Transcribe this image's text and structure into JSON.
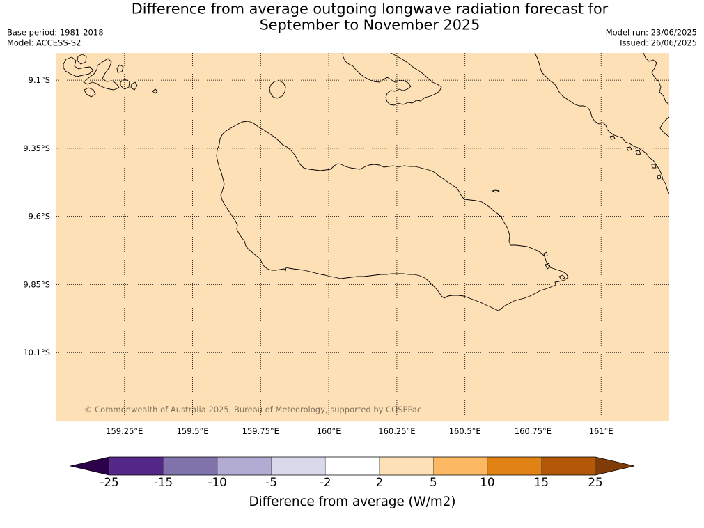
{
  "title": {
    "line1": "Difference from average outgoing longwave radiation forecast for",
    "line2": "September to November 2025"
  },
  "info_left": {
    "base_period": "Base period: 1981-2018",
    "model": "Model: ACCESS-S2"
  },
  "info_right": {
    "model_run": "Model run: 23/06/2025",
    "issued": "Issued: 26/06/2025"
  },
  "map": {
    "fill_color": "#fee0b6",
    "fill_bin": [
      2,
      5
    ],
    "lon_range": [
      159.0,
      161.25
    ],
    "lat_range": [
      -10.35,
      -9.0
    ],
    "gridlines": true,
    "lon_ticks": [
      {
        "deg": 159.25,
        "label": "159.25°E"
      },
      {
        "deg": 159.5,
        "label": "159.5°E"
      },
      {
        "deg": 159.75,
        "label": "159.75°E"
      },
      {
        "deg": 160.0,
        "label": "160°E"
      },
      {
        "deg": 160.25,
        "label": "160.25°E"
      },
      {
        "deg": 160.5,
        "label": "160.5°E"
      },
      {
        "deg": 160.75,
        "label": "160.75°E"
      },
      {
        "deg": 161.0,
        "label": "161°E"
      }
    ],
    "lat_ticks": [
      {
        "deg": -9.1,
        "label": "9.1°S"
      },
      {
        "deg": -9.35,
        "label": "9.35°S"
      },
      {
        "deg": -9.6,
        "label": "9.6°S"
      },
      {
        "deg": -9.85,
        "label": "9.85°S"
      },
      {
        "deg": -10.1,
        "label": "10.1°S"
      }
    ],
    "copyright": "© Commonwealth of Australia 2025, Bureau of Meteorology, supported by COSPPac"
  },
  "colorbar": {
    "levels": [
      -25,
      -15,
      -10,
      -5,
      -2,
      2,
      5,
      10,
      15,
      25
    ],
    "tick_labels": [
      "-25",
      "-15",
      "-10",
      "-5",
      "-2",
      "2",
      "5",
      "10",
      "15",
      "25"
    ],
    "colors": [
      "#542788",
      "#8073ac",
      "#b2abd2",
      "#d8daeb",
      "#ffffff",
      "#fee0b6",
      "#fdb863",
      "#e08214",
      "#b35806"
    ],
    "under_color": "#2d004b",
    "over_color": "#7f3b08",
    "label": "Difference from average (W/m2)"
  }
}
